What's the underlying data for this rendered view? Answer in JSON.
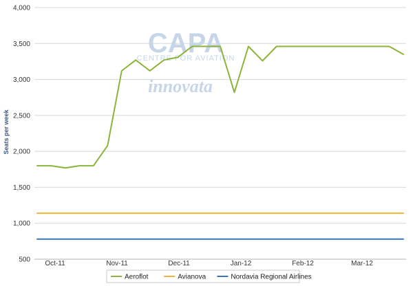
{
  "chart_data": {
    "type": "line",
    "ylabel": "Seats per week",
    "xlabel": "",
    "ylim": [
      500,
      4000
    ],
    "yticks": [
      500,
      1000,
      1500,
      2000,
      2500,
      3000,
      3500,
      4000
    ],
    "ytick_labels": [
      "500",
      "1,000",
      "1,500",
      "2,000",
      "2,500",
      "3,000",
      "3,500",
      "4,000"
    ],
    "xlim": [
      0,
      27
    ],
    "x_tick_labels": [
      {
        "label": "Oct-11",
        "x": 1.5
      },
      {
        "label": "Nov-11",
        "x": 6
      },
      {
        "label": "Dec-11",
        "x": 10.5
      },
      {
        "label": "Jan-12",
        "x": 15
      },
      {
        "label": "Feb-12",
        "x": 19.5
      },
      {
        "label": "Mar-12",
        "x": 23.8
      }
    ],
    "grid": true,
    "legend_position": "bottom-center",
    "series": [
      {
        "name": "Aeroflot",
        "color": "#8cb33a",
        "values": [
          1800,
          1800,
          1770,
          1800,
          1800,
          2080,
          3120,
          3270,
          3120,
          3270,
          3310,
          3460,
          3460,
          3460,
          2820,
          3460,
          3260,
          3460,
          3460,
          3460,
          3460,
          3460,
          3460,
          3460,
          3460,
          3460,
          3350
        ]
      },
      {
        "name": "Avianova",
        "color": "#f0b432",
        "values": [
          1140,
          1140,
          1140,
          1140,
          1140,
          1140,
          1140,
          1140,
          1140,
          1140,
          1140,
          1140,
          1140,
          1140,
          1140,
          1140,
          1140,
          1140,
          1140,
          1140,
          1140,
          1140,
          1140,
          1140,
          1140,
          1140,
          1140
        ]
      },
      {
        "name": "Nordavia Regional Airlines",
        "color": "#3a72b8",
        "values": [
          780,
          780,
          780,
          780,
          780,
          780,
          780,
          780,
          780,
          780,
          780,
          780,
          780,
          780,
          780,
          780,
          780,
          780,
          780,
          780,
          780,
          780,
          780,
          780,
          780,
          780,
          780
        ]
      }
    ]
  },
  "watermark": {
    "brand": "CAPA",
    "tagline": "CENTRE FOR AVIATION",
    "partner": "innovata"
  },
  "colors": {
    "grid": "#d8d8d8",
    "axis_label": "#3a5a8a",
    "watermark": "#c6d6e8"
  }
}
